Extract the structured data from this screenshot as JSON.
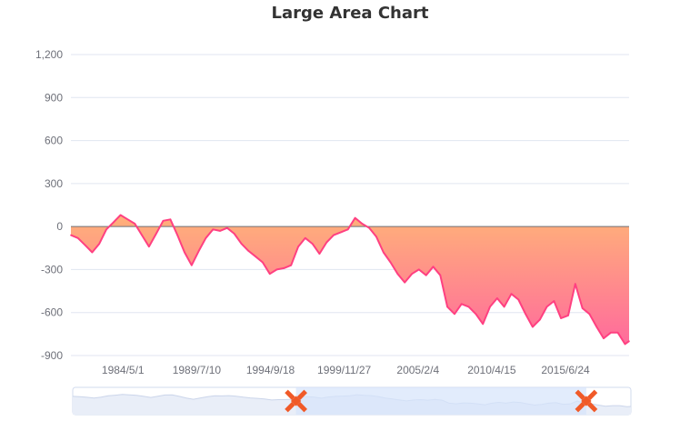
{
  "chart_data": {
    "type": "area",
    "title": "Large Area Chart",
    "xlabel": "",
    "ylabel": "",
    "ylim": [
      -900,
      1200
    ],
    "yticks": [
      "1,200",
      "900",
      "600",
      "300",
      "0",
      "-300",
      "-600",
      "-900"
    ],
    "ytick_values": [
      1200,
      900,
      600,
      300,
      0,
      -300,
      -600,
      -900
    ],
    "xticks": [
      "1984/5/1",
      "1989/7/10",
      "1994/9/18",
      "1999/11/27",
      "2005/2/4",
      "2010/4/15",
      "2015/6/24"
    ],
    "x_range": [
      "1980/9/1",
      "2019/12/15"
    ],
    "grid": true,
    "colors": {
      "line": "#ff4081",
      "area_top": "#ffb179",
      "area_bottom": "#ff6b9c",
      "dataZoom_handle": "#f05a28",
      "dataZoom_fill": "#d6e4fb",
      "dataZoom_border": "#d2dbee"
    },
    "series": [
      {
        "x": [
          "1980/9/1",
          "1981/3/1",
          "1981/9/1",
          "1982/3/1",
          "1982/9/1",
          "1983/3/1",
          "1983/9/1",
          "1984/3/1",
          "1984/9/1",
          "1985/3/1",
          "1985/9/1",
          "1986/3/1",
          "1986/9/1",
          "1987/3/1",
          "1987/9/1",
          "1988/3/1",
          "1988/9/1",
          "1989/3/1",
          "1989/9/1",
          "1990/3/1",
          "1990/9/1",
          "1991/3/1",
          "1991/9/1",
          "1992/3/1",
          "1992/9/1",
          "1993/3/1",
          "1993/9/1",
          "1994/3/1",
          "1994/9/1",
          "1995/3/1",
          "1995/9/1",
          "1996/3/1",
          "1996/9/1",
          "1997/3/1",
          "1997/9/1",
          "1998/3/1",
          "1998/9/1",
          "1999/3/1",
          "1999/9/1",
          "2000/3/1",
          "2000/9/1",
          "2001/3/1",
          "2001/9/1",
          "2002/3/1",
          "2002/9/1",
          "2003/3/1",
          "2003/9/1",
          "2004/3/1",
          "2004/9/1",
          "2005/3/1",
          "2005/9/1",
          "2006/3/1",
          "2006/9/1",
          "2007/3/1",
          "2007/9/1",
          "2008/3/1",
          "2008/9/1",
          "2009/3/1",
          "2009/9/1",
          "2010/3/1",
          "2010/9/1",
          "2011/3/1",
          "2011/9/1",
          "2012/3/1",
          "2012/9/1",
          "2013/3/1",
          "2013/9/1",
          "2014/3/1",
          "2014/9/1",
          "2015/3/1",
          "2015/9/1",
          "2016/3/1",
          "2016/9/1",
          "2017/3/1",
          "2017/9/1",
          "2018/3/1",
          "2018/9/1",
          "2019/3/1",
          "2019/9/1",
          "2019/12/15"
        ],
        "y": [
          -60,
          -80,
          -130,
          -180,
          -120,
          -20,
          30,
          80,
          50,
          20,
          -60,
          -140,
          -50,
          40,
          50,
          -60,
          -180,
          -270,
          -170,
          -80,
          -20,
          -30,
          -10,
          -50,
          -120,
          -170,
          -210,
          -250,
          -330,
          -300,
          -290,
          -270,
          -140,
          -80,
          -120,
          -190,
          -110,
          -60,
          -40,
          -20,
          60,
          20,
          -10,
          -70,
          -180,
          -250,
          -330,
          -390,
          -330,
          -300,
          -340,
          -280,
          -340,
          -560,
          -610,
          -540,
          -560,
          -610,
          -680,
          -560,
          -500,
          -560,
          -470,
          -510,
          -610,
          -700,
          -650,
          -560,
          -520,
          -640,
          -620,
          -400,
          -570,
          -610,
          -700,
          -780,
          -740,
          -740,
          -820,
          -800
        ]
      }
    ],
    "dataZoom": {
      "start_percent": 40,
      "end_percent": 92
    }
  }
}
